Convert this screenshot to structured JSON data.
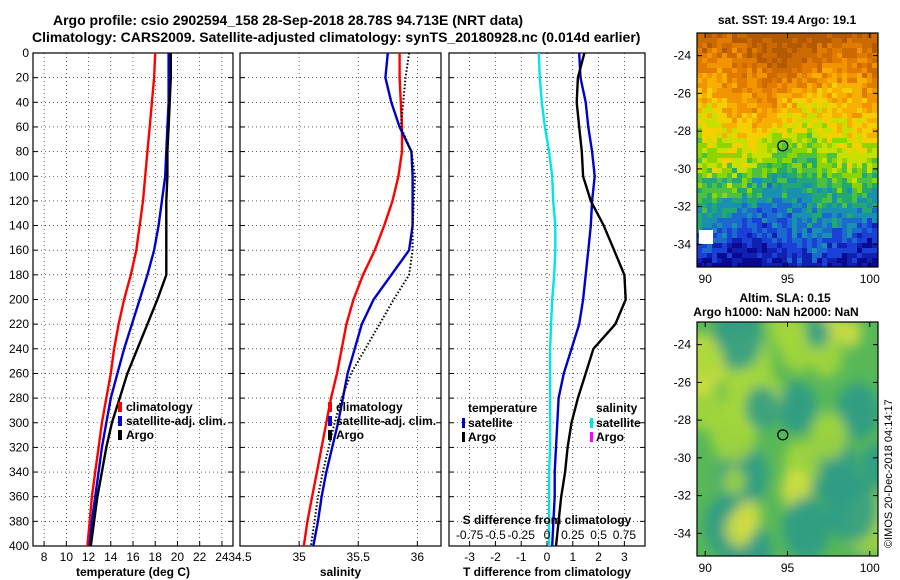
{
  "title_line1": "Argo profile: csio 2902594_158 28-Sep-2018 28.78S 94.713E (NRT data)",
  "title_line2": "Climatology: CARS2009. Satellite-adjusted climatology: synTS_20180928.nc (0.014d earlier)",
  "watermark": "©IMOS 20-Dec-2018 04:14:17",
  "colors": {
    "climatology": "#ff0000",
    "satellite": "#0000cc",
    "argo": "#000000",
    "s_sat": "#00e5e5",
    "s_argo": "#ff00ff"
  },
  "depth_ticks": [
    "0",
    "20",
    "40",
    "60",
    "80",
    "100",
    "120",
    "140",
    "160",
    "180",
    "200",
    "220",
    "240",
    "260",
    "280",
    "300",
    "320",
    "340",
    "360",
    "380",
    "400"
  ],
  "chart_data": [
    {
      "type": "line",
      "name": "temperature",
      "xlabel": "temperature (deg C)",
      "ylabel": "",
      "xlim": [
        7,
        25
      ],
      "ylim": [
        400,
        0
      ],
      "xticks": [
        "8",
        "10",
        "12",
        "14",
        "16",
        "18",
        "20",
        "22",
        "24"
      ],
      "xtick_values": [
        8,
        10,
        12,
        14,
        16,
        18,
        20,
        22,
        24
      ],
      "legend": [
        "climatology",
        "satellite-adj. clim.",
        "Argo"
      ],
      "depth": [
        0,
        20,
        40,
        60,
        80,
        100,
        120,
        140,
        160,
        180,
        200,
        220,
        240,
        260,
        280,
        300,
        320,
        340,
        360,
        380,
        400
      ],
      "series": [
        {
          "name": "climatology",
          "values": [
            18.0,
            17.9,
            17.7,
            17.5,
            17.3,
            17.1,
            16.9,
            16.6,
            16.3,
            15.8,
            15.2,
            14.7,
            14.3,
            14.0,
            13.6,
            13.2,
            12.9,
            12.6,
            12.3,
            12.1,
            11.9
          ]
        },
        {
          "name": "satellite-adj. clim.",
          "values": [
            19.2,
            19.2,
            19.2,
            19.1,
            19.0,
            18.9,
            18.6,
            18.3,
            17.9,
            17.3,
            16.6,
            15.9,
            15.2,
            14.6,
            14.0,
            13.6,
            13.2,
            12.9,
            12.6,
            12.3,
            12.1
          ]
        },
        {
          "name": "Argo",
          "values": [
            19.4,
            19.4,
            19.3,
            19.2,
            19.1,
            19.1,
            19.0,
            19.0,
            19.0,
            19.0,
            18.2,
            17.3,
            16.4,
            15.5,
            14.8,
            14.1,
            13.6,
            13.2,
            12.8,
            12.5,
            12.2
          ]
        }
      ]
    },
    {
      "type": "line",
      "name": "salinity",
      "xlabel": "salinity",
      "xlim": [
        34.5,
        36.2
      ],
      "ylim": [
        400,
        0
      ],
      "xticks": [
        "34.5",
        "35",
        "35.5",
        "36"
      ],
      "xtick_values": [
        34.5,
        35,
        35.5,
        36
      ],
      "legend": [
        "climatology",
        "satellite-adj. clim.",
        "Argo"
      ],
      "depth": [
        0,
        20,
        40,
        60,
        80,
        100,
        120,
        140,
        160,
        180,
        200,
        220,
        240,
        260,
        280,
        300,
        320,
        340,
        360,
        380,
        400
      ],
      "series": [
        {
          "name": "climatology",
          "values": [
            35.85,
            35.85,
            35.86,
            35.87,
            35.87,
            35.84,
            35.79,
            35.72,
            35.64,
            35.54,
            35.46,
            35.4,
            35.36,
            35.32,
            35.27,
            35.23,
            35.19,
            35.15,
            35.11,
            35.07,
            35.04
          ]
        },
        {
          "name": "satellite-adj. clim.",
          "values": [
            35.75,
            35.73,
            35.78,
            35.85,
            35.95,
            35.96,
            35.96,
            35.96,
            35.93,
            35.78,
            35.63,
            35.53,
            35.47,
            35.41,
            35.37,
            35.33,
            35.28,
            35.23,
            35.19,
            35.16,
            35.12
          ]
        },
        {
          "name": "Argo",
          "values": [
            35.93,
            35.9,
            35.88,
            35.86,
            35.95,
            35.98,
            35.97,
            35.96,
            35.96,
            35.93,
            35.8,
            35.68,
            35.56,
            35.44,
            35.36,
            35.3,
            35.25,
            35.2,
            35.16,
            35.13,
            35.1
          ]
        }
      ]
    },
    {
      "type": "line",
      "name": "difference",
      "xlabel": "T difference from climatology",
      "top_xlabel": "S difference from climatology",
      "xlim": [
        -3.8,
        3.8
      ],
      "ylim": [
        400,
        0
      ],
      "xticks": [
        "-3",
        "-2",
        "-1",
        "0",
        "1",
        "2",
        "3"
      ],
      "xtick_values": [
        -3,
        -2,
        -1,
        0,
        1,
        2,
        3
      ],
      "top_xticks": [
        "-0.75",
        "-0.5",
        "-0.25",
        "0",
        "0.25",
        "0.5",
        "0.75"
      ],
      "legend_temperature_title": "temperature",
      "legend_salinity_title": "salinity",
      "legend_temperature": [
        "satellite",
        "Argo"
      ],
      "legend_salinity": [
        "satellite",
        "Argo"
      ],
      "depth": [
        0,
        20,
        40,
        60,
        80,
        100,
        120,
        140,
        160,
        180,
        200,
        220,
        240,
        260,
        280,
        300,
        320,
        340,
        360,
        380,
        400
      ],
      "series": [
        {
          "name": "T satellite",
          "values": [
            1.25,
            1.3,
            1.5,
            1.6,
            1.75,
            1.85,
            1.75,
            1.7,
            1.6,
            1.5,
            1.4,
            1.25,
            0.95,
            0.65,
            0.45,
            0.4,
            0.35,
            0.3,
            0.3,
            0.25,
            0.2
          ]
        },
        {
          "name": "T Argo",
          "values": [
            1.45,
            1.2,
            1.15,
            1.25,
            1.35,
            1.4,
            1.7,
            2.2,
            2.6,
            3.0,
            3.05,
            2.65,
            1.8,
            1.5,
            1.2,
            0.95,
            0.8,
            0.7,
            0.55,
            0.45,
            0.35
          ]
        },
        {
          "name": "S satellite",
          "values": [
            -0.08,
            -0.07,
            -0.05,
            -0.02,
            0.02,
            0.05,
            0.06,
            0.08,
            0.08,
            0.07,
            0.05,
            0.04,
            0.03,
            0.03,
            0.03,
            0.03,
            0.03,
            0.02,
            0.02,
            0.02,
            0.02
          ]
        }
      ]
    },
    {
      "type": "heatmap",
      "name": "sst_map",
      "title": "sat. SST: 19.4 Argo: 19.1",
      "xticks": [
        "90",
        "95",
        "100"
      ],
      "xlim": [
        89.5,
        100.5
      ],
      "yticks": [
        "-24",
        "-26",
        "-28",
        "-30",
        "-32",
        "-34"
      ],
      "ylim": [
        -35.2,
        -22.8
      ],
      "marker_lon": 94.713,
      "marker_lat": -28.78
    },
    {
      "type": "heatmap",
      "name": "sla_map",
      "title": "Altim. SLA: 0.15",
      "subtitle": "Argo h1000: NaN h2000: NaN",
      "xticks": [
        "90",
        "95",
        "100"
      ],
      "xlim": [
        89.5,
        100.5
      ],
      "yticks": [
        "-24",
        "-26",
        "-28",
        "-30",
        "-32",
        "-34"
      ],
      "ylim": [
        -35.2,
        -22.8
      ],
      "marker_lon": 94.713,
      "marker_lat": -28.78
    }
  ]
}
